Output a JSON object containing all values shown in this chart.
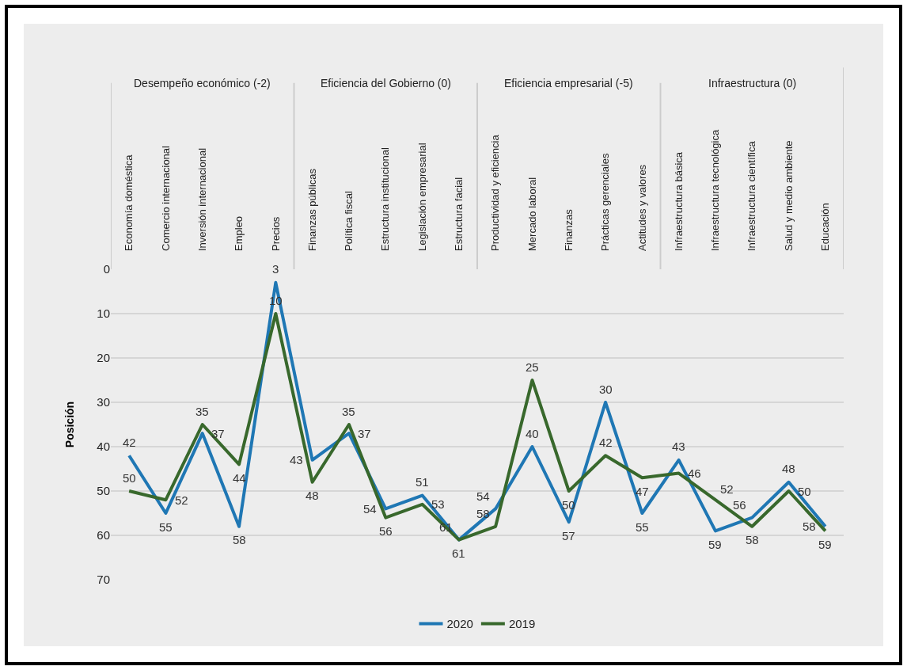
{
  "chart_data": {
    "type": "line",
    "ylabel": "Posición",
    "categories": [
      "Economía doméstica",
      "Comercio internacional",
      "Inversión internacional",
      "Empleo",
      "Precios",
      "Finanzas públicas",
      "Política fiscal",
      "Estructura institucional",
      "Legislación empresarial",
      "Estructura facial",
      "Productividad y eficiencia",
      "Mercado laboral",
      "Finanzas",
      "Prácticas gerenciales",
      "Actitudes y valores",
      "Infraestructura básica",
      "Infraestructura tecnológica",
      "Infraestructura científica",
      "Salud y medio ambiente",
      "Educación"
    ],
    "series": [
      {
        "name": "2020",
        "color": "#1f77b4",
        "values": [
          42,
          55,
          37,
          58,
          3,
          43,
          37,
          54,
          51,
          61,
          54,
          40,
          57,
          30,
          55,
          43,
          59,
          56,
          48,
          58
        ]
      },
      {
        "name": "2019",
        "color": "#38682c",
        "values": [
          50,
          52,
          35,
          44,
          10,
          48,
          35,
          56,
          53,
          61,
          58,
          25,
          50,
          42,
          47,
          46,
          52,
          58,
          50,
          59
        ]
      }
    ],
    "annotations": [
      "Desempeño económico (-2)",
      "Eficiencia del Gobierno (0)",
      "Eficiencia empresarial (-5)",
      "Infraestructura (0)"
    ],
    "ylim": [
      70,
      0
    ],
    "yticks": [
      0,
      10,
      20,
      30,
      40,
      50,
      60,
      70
    ],
    "grid": "y",
    "legend": "bottom",
    "marker": "none",
    "line_style": "solid",
    "data_labels": true
  }
}
